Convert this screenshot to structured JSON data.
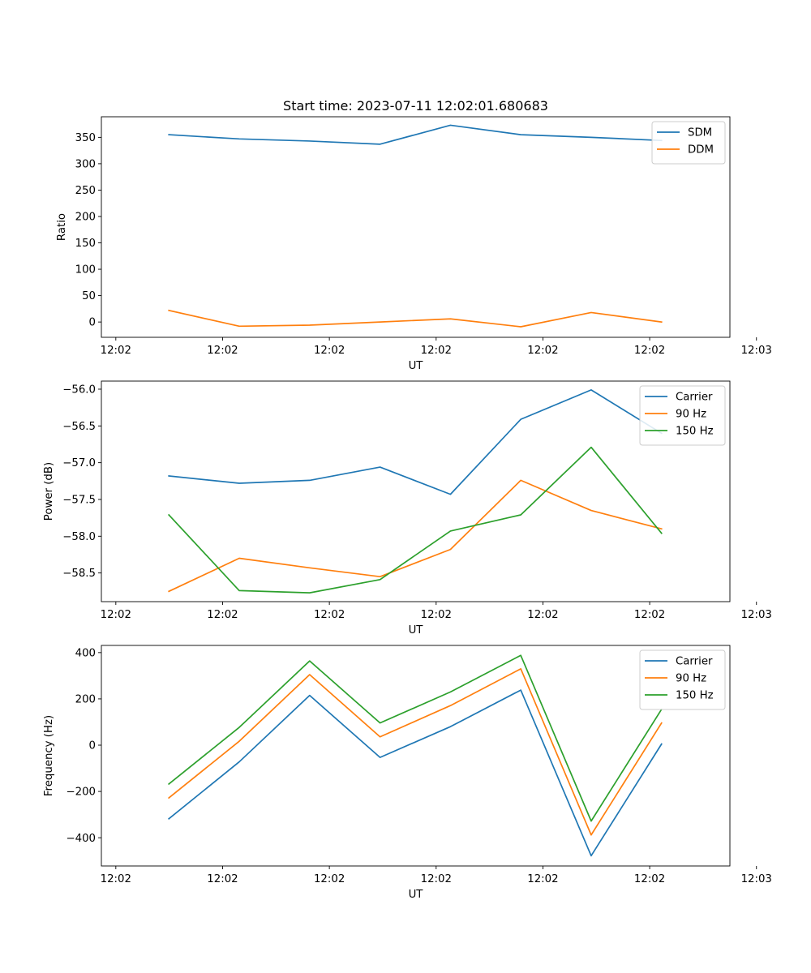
{
  "chart_data": [
    {
      "type": "line",
      "title": "Start time: 2023-07-11 12:02:01.680683",
      "xlabel": "UT",
      "ylabel": "Ratio",
      "ylim": [
        -29,
        389
      ],
      "yticks": [
        0,
        50,
        100,
        150,
        200,
        250,
        300,
        350
      ],
      "yticklabels": [
        "0",
        "50",
        "100",
        "150",
        "200",
        "250",
        "300",
        "350"
      ],
      "xlim": [
        -0.203,
        8.627
      ],
      "xticks": [
        0,
        1.5,
        3,
        4.5,
        6,
        7.5,
        9
      ],
      "xticklabels": [
        "12:02",
        "12:02",
        "12:02",
        "12:02",
        "12:02",
        "12:02",
        "12:03"
      ],
      "x": [
        0.745,
        1.734,
        2.723,
        3.712,
        4.701,
        5.689,
        6.678,
        7.667
      ],
      "legend_loc": "upper right",
      "series": [
        {
          "name": "SDM",
          "color": "#1f77b4",
          "values": [
            355,
            347,
            343,
            337,
            373,
            355,
            350,
            344
          ]
        },
        {
          "name": "DDM",
          "color": "#ff7f0e",
          "values": [
            22,
            -8,
            -6,
            0,
            6,
            -9,
            18,
            0
          ]
        }
      ]
    },
    {
      "type": "line",
      "title": "",
      "xlabel": "UT",
      "ylabel": "Power (dB)",
      "ylim": [
        -58.89,
        -55.89
      ],
      "yticks": [
        -58.5,
        -58.0,
        -57.5,
        -57.0,
        -56.5,
        -56.0
      ],
      "yticklabels": [
        "−58.5",
        "−58.0",
        "−57.5",
        "−57.0",
        "−56.5",
        "−56.0"
      ],
      "xlim": [
        -0.203,
        8.627
      ],
      "xticks": [
        0,
        1.5,
        3,
        4.5,
        6,
        7.5,
        9
      ],
      "xticklabels": [
        "12:02",
        "12:02",
        "12:02",
        "12:02",
        "12:02",
        "12:02",
        "12:03"
      ],
      "x": [
        0.745,
        1.734,
        2.723,
        3.712,
        4.701,
        5.689,
        6.678,
        7.667
      ],
      "legend_loc": "upper right",
      "series": [
        {
          "name": "Carrier",
          "color": "#1f77b4",
          "values": [
            -57.18,
            -57.28,
            -57.24,
            -57.06,
            -57.43,
            -56.41,
            -56.01,
            -56.6
          ]
        },
        {
          "name": "90 Hz",
          "color": "#ff7f0e",
          "values": [
            -58.75,
            -58.3,
            -58.43,
            -58.55,
            -58.18,
            -57.24,
            -57.65,
            -57.9
          ]
        },
        {
          "name": "150 Hz",
          "color": "#2ca02c",
          "values": [
            -57.71,
            -58.74,
            -58.77,
            -58.59,
            -57.93,
            -57.71,
            -56.79,
            -57.96
          ]
        }
      ]
    },
    {
      "type": "line",
      "title": "",
      "xlabel": "UT",
      "ylabel": "Frequency (Hz)",
      "ylim": [
        -522,
        431
      ],
      "yticks": [
        -400,
        -200,
        0,
        200,
        400
      ],
      "yticklabels": [
        "−400",
        "−200",
        "0",
        "200",
        "400"
      ],
      "xlim": [
        -0.203,
        8.627
      ],
      "xticks": [
        0,
        1.5,
        3,
        4.5,
        6,
        7.5,
        9
      ],
      "xticklabels": [
        "12:02",
        "12:02",
        "12:02",
        "12:02",
        "12:02",
        "12:02",
        "12:03"
      ],
      "x": [
        0.745,
        1.734,
        2.723,
        3.712,
        4.701,
        5.689,
        6.678,
        7.667
      ],
      "legend_loc": "upper right",
      "series": [
        {
          "name": "Carrier",
          "color": "#1f77b4",
          "values": [
            -318,
            -72,
            215,
            -53,
            80,
            238,
            -478,
            5
          ]
        },
        {
          "name": "90 Hz",
          "color": "#ff7f0e",
          "values": [
            -228,
            17,
            305,
            36,
            171,
            330,
            -388,
            96
          ]
        },
        {
          "name": "150 Hz",
          "color": "#2ca02c",
          "values": [
            -168,
            77,
            364,
            96,
            230,
            388,
            -328,
            155
          ]
        }
      ]
    }
  ]
}
